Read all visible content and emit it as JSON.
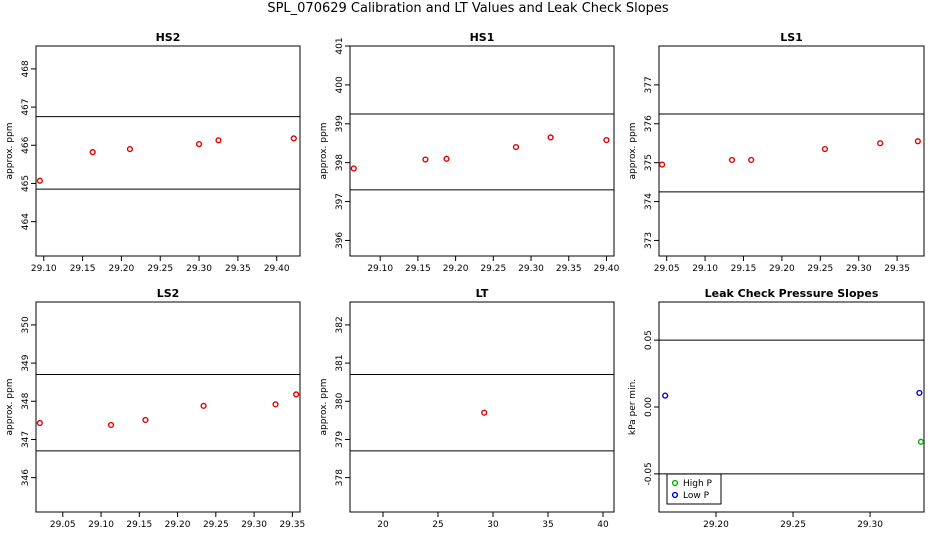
{
  "title": "SPL_070629  Calibration and LT Values and Leak Check Slopes",
  "chart_data": [
    {
      "type": "scatter",
      "title": "HS2",
      "ylabel": "approx. ppm",
      "xlim": [
        29.09,
        29.43
      ],
      "ylim": [
        463.1,
        468.6
      ],
      "xticks": [
        "29.10",
        "29.15",
        "29.20",
        "29.25",
        "29.30",
        "29.35",
        "29.40"
      ],
      "yticks": [
        "464",
        "465",
        "466",
        "467",
        "468"
      ],
      "hlines": [
        466.75,
        464.85
      ],
      "series": [
        {
          "color": "#e00000",
          "x": [
            29.095,
            29.163,
            29.211,
            29.3,
            29.325,
            29.422
          ],
          "y": [
            465.07,
            465.82,
            465.9,
            466.03,
            466.13,
            466.18
          ]
        }
      ]
    },
    {
      "type": "scatter",
      "title": "HS1",
      "ylabel": "approx. ppm",
      "xlim": [
        29.06,
        29.41
      ],
      "ylim": [
        395.6,
        401.0
      ],
      "xticks": [
        "29.10",
        "29.15",
        "29.20",
        "29.25",
        "29.30",
        "29.35",
        "29.40"
      ],
      "yticks": [
        "396",
        "397",
        "398",
        "399",
        "400",
        "401"
      ],
      "hlines": [
        399.25,
        397.3
      ],
      "series": [
        {
          "color": "#e00000",
          "x": [
            29.065,
            29.16,
            29.188,
            29.28,
            29.326,
            29.4
          ],
          "y": [
            397.85,
            398.08,
            398.1,
            398.4,
            398.65,
            398.58
          ]
        }
      ]
    },
    {
      "type": "scatter",
      "title": "LS1",
      "ylabel": "approx. ppm",
      "xlim": [
        29.04,
        29.385
      ],
      "ylim": [
        372.6,
        378.0
      ],
      "xticks": [
        "29.05",
        "29.10",
        "29.15",
        "29.20",
        "29.25",
        "29.30",
        "29.35"
      ],
      "yticks": [
        "373",
        "374",
        "375",
        "376",
        "377"
      ],
      "hlines": [
        376.25,
        374.25
      ],
      "series": [
        {
          "color": "#e00000",
          "x": [
            29.044,
            29.135,
            29.16,
            29.256,
            29.328,
            29.377
          ],
          "y": [
            374.95,
            375.07,
            375.07,
            375.35,
            375.5,
            375.55
          ]
        }
      ]
    },
    {
      "type": "scatter",
      "title": "LS2",
      "ylabel": "approx. ppm",
      "xlim": [
        29.015,
        29.36
      ],
      "ylim": [
        345.1,
        350.6
      ],
      "xticks": [
        "29.05",
        "29.10",
        "29.15",
        "29.20",
        "29.25",
        "29.30",
        "29.35"
      ],
      "yticks": [
        "346",
        "347",
        "348",
        "349",
        "350"
      ],
      "hlines": [
        348.7,
        346.7
      ],
      "series": [
        {
          "color": "#e00000",
          "x": [
            29.02,
            29.113,
            29.158,
            29.234,
            29.328,
            29.355
          ],
          "y": [
            347.43,
            347.38,
            347.51,
            347.88,
            347.92,
            348.18
          ]
        }
      ]
    },
    {
      "type": "scatter",
      "title": "LT",
      "ylabel": "approx. ppm",
      "xlim": [
        17,
        41
      ],
      "ylim": [
        377.1,
        382.6
      ],
      "xticks": [
        "20",
        "25",
        "30",
        "35",
        "40"
      ],
      "yticks": [
        "378",
        "379",
        "380",
        "381",
        "382"
      ],
      "hlines": [
        380.7,
        378.7
      ],
      "series": [
        {
          "color": "#e00000",
          "x": [
            29.2
          ],
          "y": [
            379.7
          ]
        }
      ]
    },
    {
      "type": "scatter",
      "title": "Leak Check Pressure Slopes",
      "ylabel": "kPa per min.",
      "xlim": [
        29.163,
        29.335
      ],
      "ylim": [
        -0.0785,
        0.0785
      ],
      "xticks": [
        "29.20",
        "29.25",
        "29.30"
      ],
      "yticks": [
        "-0.05",
        "0.00",
        "0.05"
      ],
      "hlines": [
        0.05,
        -0.05
      ],
      "legend": {
        "position": "bottom-left",
        "entries": [
          "High P",
          "Low P"
        ]
      },
      "series": [
        {
          "name": "High P",
          "color": "#00b000",
          "x": [
            29.333
          ],
          "y": [
            -0.026
          ]
        },
        {
          "name": "Low P",
          "color": "#0000d0",
          "x": [
            29.167,
            29.332
          ],
          "y": [
            0.0085,
            0.0105
          ]
        }
      ]
    }
  ]
}
